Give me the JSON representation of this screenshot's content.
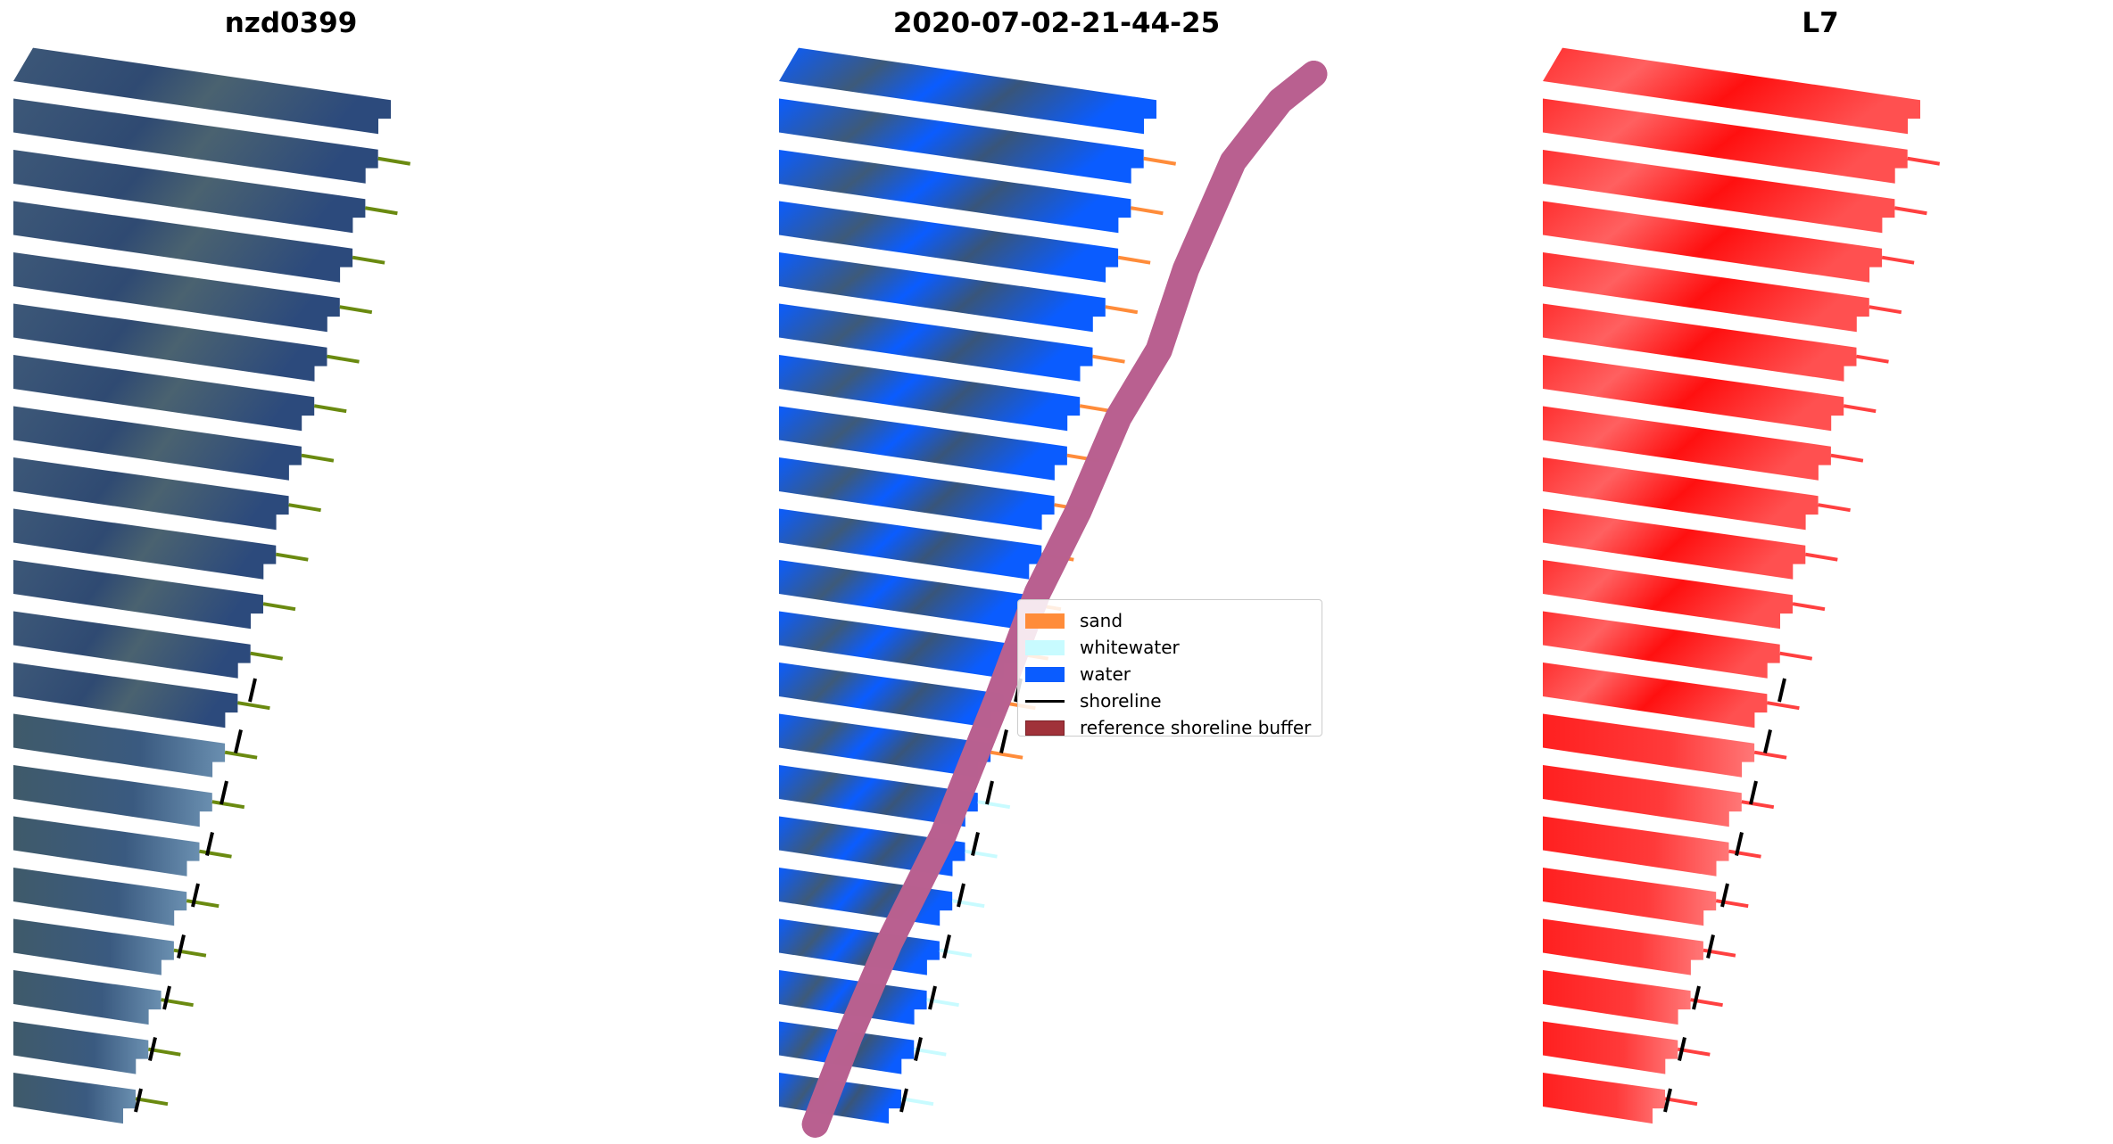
{
  "chart_data": {
    "type": "image",
    "panels": [
      {
        "title": "nzd0399",
        "content": "RGB satellite image"
      },
      {
        "title": "2020-07-02-21-44-25",
        "content": "classified image"
      },
      {
        "title": "L7",
        "content": "red-band image"
      }
    ],
    "legend": {
      "placement": "center",
      "entries": [
        {
          "label": "sand",
          "kind": "patch",
          "color": "#ff8c3a"
        },
        {
          "label": "whitewater",
          "kind": "patch",
          "color": "#c8fbff"
        },
        {
          "label": "water",
          "kind": "patch",
          "color": "#0a5cff"
        },
        {
          "label": "shoreline",
          "kind": "line",
          "color": "#000000"
        },
        {
          "label": "reference shoreline buffer",
          "kind": "patch",
          "color": "#a0323a"
        }
      ]
    },
    "colors": {
      "buffer": "#b8608f",
      "rgb": "#35507a",
      "red": "#ff2222"
    }
  }
}
